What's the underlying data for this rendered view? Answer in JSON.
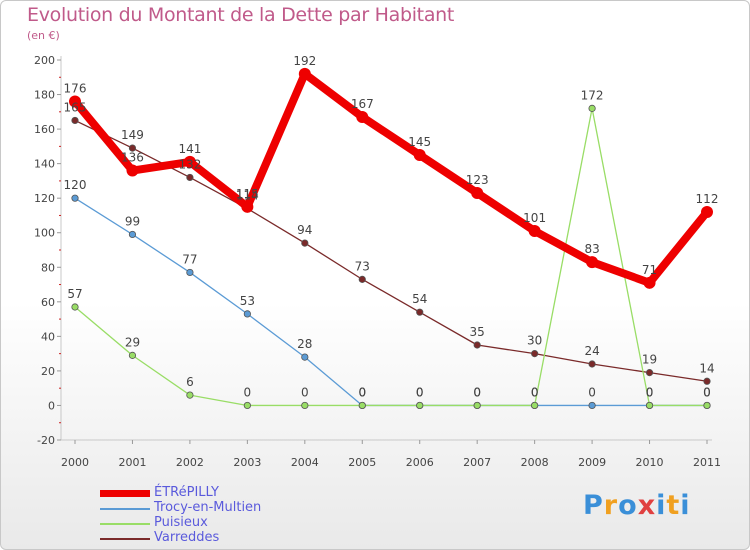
{
  "title": "Evolution du Montant de la Dette par Habitant",
  "unit_label": "(en €)",
  "logo": {
    "text": "Proxiti",
    "colors": [
      "#3a8fd8",
      "#f0a020",
      "#3a8fd8",
      "#e04040",
      "#3a8fd8",
      "#f0a020",
      "#3a8fd8"
    ]
  },
  "chart_data": {
    "type": "line",
    "title": "Evolution du Montant de la Dette par Habitant",
    "ylabel": "(en €)",
    "x": [
      "2000",
      "2001",
      "2002",
      "2003",
      "2004",
      "2005",
      "2006",
      "2007",
      "2008",
      "2009",
      "2010",
      "2011"
    ],
    "ylim": [
      -20,
      200
    ],
    "yticks": [
      -20,
      0,
      20,
      40,
      60,
      80,
      100,
      120,
      140,
      160,
      180,
      200
    ],
    "grid": false,
    "legend": "bottom-left",
    "series": [
      {
        "name": "ÉTRéPILLY",
        "color": "#ee0000",
        "width": 8,
        "marker": 6,
        "values": [
          176,
          136,
          141,
          115,
          192,
          167,
          145,
          123,
          101,
          83,
          71,
          112
        ],
        "labels": [
          "176",
          "136",
          "141",
          "115",
          "192",
          "167",
          "145",
          "123",
          "101",
          "83",
          "71",
          "112"
        ]
      },
      {
        "name": "Trocy-en-Multien",
        "color": "#5b9bd5",
        "width": 1.3,
        "marker": 3.2,
        "values": [
          120,
          99,
          77,
          53,
          28,
          0,
          0,
          0,
          0,
          0,
          0,
          0
        ],
        "labels": [
          "120",
          "99",
          "77",
          "53",
          "28",
          "0",
          "0",
          "0",
          "0",
          "0",
          "0",
          "0"
        ]
      },
      {
        "name": "Puisieux",
        "color": "#99dd66",
        "width": 1.3,
        "marker": 3.2,
        "values": [
          57,
          29,
          6,
          0,
          0,
          0,
          0,
          0,
          0,
          172,
          0,
          0
        ],
        "labels": [
          "57",
          "29",
          "6",
          "0",
          "0",
          "0",
          "0",
          "0",
          "0",
          "172",
          "0",
          "0"
        ]
      },
      {
        "name": "Varreddes",
        "color": "#7a2a2a",
        "width": 1.3,
        "marker": 3.2,
        "values": [
          165,
          149,
          132,
          114,
          94,
          73,
          54,
          35,
          30,
          24,
          19,
          14
        ],
        "labels": [
          "165",
          "149",
          "132",
          "114",
          "94",
          "73",
          "54",
          "35",
          "30",
          "24",
          "19",
          "14"
        ]
      }
    ]
  }
}
